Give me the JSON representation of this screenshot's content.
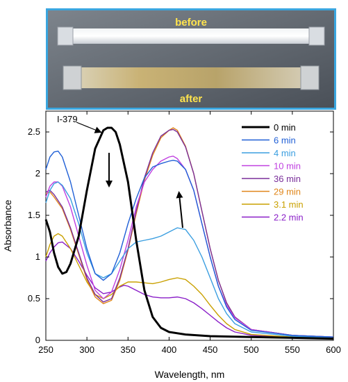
{
  "photo": {
    "before_label": "before",
    "after_label": "after",
    "label_color": "#ffe44d",
    "border_color": "#3aa6df"
  },
  "chart_data": {
    "type": "line",
    "title": "",
    "xlabel": "Wavelength, nm",
    "ylabel": "Absorbance",
    "xlim": [
      250,
      600
    ],
    "ylim": [
      0,
      2.75
    ],
    "xticks": [
      250,
      300,
      350,
      400,
      450,
      500,
      550,
      600
    ],
    "yticks": [
      0,
      0.5,
      1,
      1.5,
      2,
      2.5
    ],
    "xtick_labels": [
      "250",
      "300",
      "350",
      "400",
      "450",
      "500",
      "550",
      "600"
    ],
    "ytick_labels": [
      "0",
      "0.5",
      "1",
      "1.5",
      "2",
      "2.5"
    ],
    "grid": false,
    "legend_position": "top-right",
    "annotation": "I-379",
    "series": [
      {
        "name": "0 min",
        "color": "#000000",
        "points": [
          [
            250,
            1.45
          ],
          [
            255,
            1.3
          ],
          [
            260,
            1.05
          ],
          [
            265,
            0.88
          ],
          [
            270,
            0.8
          ],
          [
            275,
            0.82
          ],
          [
            280,
            0.92
          ],
          [
            290,
            1.25
          ],
          [
            300,
            1.8
          ],
          [
            310,
            2.3
          ],
          [
            320,
            2.52
          ],
          [
            325,
            2.55
          ],
          [
            330,
            2.55
          ],
          [
            335,
            2.5
          ],
          [
            340,
            2.35
          ],
          [
            350,
            1.9
          ],
          [
            360,
            1.2
          ],
          [
            370,
            0.6
          ],
          [
            380,
            0.28
          ],
          [
            390,
            0.15
          ],
          [
            400,
            0.1
          ],
          [
            420,
            0.07
          ],
          [
            450,
            0.05
          ],
          [
            500,
            0.04
          ],
          [
            550,
            0.03
          ],
          [
            600,
            0.02
          ]
        ]
      },
      {
        "name": "6 min",
        "color": "#1f5fd6",
        "points": [
          [
            250,
            2.05
          ],
          [
            255,
            2.2
          ],
          [
            260,
            2.26
          ],
          [
            265,
            2.27
          ],
          [
            270,
            2.2
          ],
          [
            280,
            1.9
          ],
          [
            290,
            1.5
          ],
          [
            300,
            1.1
          ],
          [
            310,
            0.8
          ],
          [
            320,
            0.72
          ],
          [
            330,
            0.8
          ],
          [
            340,
            1.05
          ],
          [
            350,
            1.4
          ],
          [
            360,
            1.7
          ],
          [
            370,
            1.95
          ],
          [
            380,
            2.08
          ],
          [
            390,
            2.12
          ],
          [
            400,
            2.15
          ],
          [
            405,
            2.16
          ],
          [
            410,
            2.15
          ],
          [
            420,
            2.05
          ],
          [
            430,
            1.8
          ],
          [
            440,
            1.4
          ],
          [
            450,
            1.0
          ],
          [
            460,
            0.65
          ],
          [
            470,
            0.4
          ],
          [
            480,
            0.25
          ],
          [
            500,
            0.12
          ],
          [
            550,
            0.06
          ],
          [
            600,
            0.04
          ]
        ]
      },
      {
        "name": "4 min",
        "color": "#3a9ee0",
        "points": [
          [
            250,
            1.65
          ],
          [
            255,
            1.8
          ],
          [
            260,
            1.88
          ],
          [
            265,
            1.9
          ],
          [
            270,
            1.86
          ],
          [
            280,
            1.7
          ],
          [
            290,
            1.4
          ],
          [
            300,
            1.05
          ],
          [
            310,
            0.8
          ],
          [
            320,
            0.75
          ],
          [
            330,
            0.8
          ],
          [
            340,
            0.95
          ],
          [
            350,
            1.1
          ],
          [
            360,
            1.18
          ],
          [
            370,
            1.2
          ],
          [
            380,
            1.22
          ],
          [
            390,
            1.25
          ],
          [
            400,
            1.3
          ],
          [
            410,
            1.35
          ],
          [
            420,
            1.33
          ],
          [
            430,
            1.2
          ],
          [
            440,
            1.0
          ],
          [
            450,
            0.75
          ],
          [
            460,
            0.5
          ],
          [
            470,
            0.32
          ],
          [
            480,
            0.2
          ],
          [
            500,
            0.1
          ],
          [
            550,
            0.05
          ],
          [
            600,
            0.03
          ]
        ]
      },
      {
        "name": "10 min",
        "color": "#c040e0",
        "points": [
          [
            250,
            1.72
          ],
          [
            255,
            1.85
          ],
          [
            260,
            1.9
          ],
          [
            265,
            1.9
          ],
          [
            270,
            1.85
          ],
          [
            280,
            1.6
          ],
          [
            290,
            1.25
          ],
          [
            300,
            0.9
          ],
          [
            310,
            0.6
          ],
          [
            320,
            0.5
          ],
          [
            330,
            0.58
          ],
          [
            340,
            0.85
          ],
          [
            350,
            1.2
          ],
          [
            360,
            1.6
          ],
          [
            370,
            1.9
          ],
          [
            380,
            2.05
          ],
          [
            390,
            2.15
          ],
          [
            400,
            2.2
          ],
          [
            405,
            2.21
          ],
          [
            410,
            2.18
          ],
          [
            420,
            2.05
          ],
          [
            430,
            1.8
          ],
          [
            440,
            1.4
          ],
          [
            450,
            1.0
          ],
          [
            460,
            0.65
          ],
          [
            470,
            0.42
          ],
          [
            480,
            0.27
          ],
          [
            500,
            0.13
          ],
          [
            550,
            0.06
          ],
          [
            600,
            0.04
          ]
        ]
      },
      {
        "name": "36 min",
        "color": "#7a2f9a",
        "points": [
          [
            250,
            1.78
          ],
          [
            255,
            1.8
          ],
          [
            260,
            1.75
          ],
          [
            270,
            1.6
          ],
          [
            280,
            1.35
          ],
          [
            290,
            1.05
          ],
          [
            300,
            0.75
          ],
          [
            310,
            0.55
          ],
          [
            320,
            0.46
          ],
          [
            330,
            0.5
          ],
          [
            340,
            0.75
          ],
          [
            350,
            1.1
          ],
          [
            360,
            1.55
          ],
          [
            370,
            1.95
          ],
          [
            380,
            2.25
          ],
          [
            390,
            2.45
          ],
          [
            400,
            2.52
          ],
          [
            405,
            2.53
          ],
          [
            410,
            2.5
          ],
          [
            420,
            2.32
          ],
          [
            430,
            2.0
          ],
          [
            440,
            1.55
          ],
          [
            450,
            1.1
          ],
          [
            460,
            0.72
          ],
          [
            470,
            0.45
          ],
          [
            480,
            0.28
          ],
          [
            500,
            0.13
          ],
          [
            550,
            0.06
          ],
          [
            600,
            0.04
          ]
        ]
      },
      {
        "name": "29 min",
        "color": "#e0861a",
        "points": [
          [
            250,
            1.76
          ],
          [
            255,
            1.78
          ],
          [
            260,
            1.72
          ],
          [
            270,
            1.58
          ],
          [
            280,
            1.33
          ],
          [
            290,
            1.03
          ],
          [
            300,
            0.73
          ],
          [
            310,
            0.52
          ],
          [
            320,
            0.44
          ],
          [
            330,
            0.48
          ],
          [
            340,
            0.72
          ],
          [
            350,
            1.08
          ],
          [
            360,
            1.52
          ],
          [
            370,
            1.92
          ],
          [
            380,
            2.22
          ],
          [
            390,
            2.43
          ],
          [
            400,
            2.52
          ],
          [
            405,
            2.55
          ],
          [
            410,
            2.52
          ],
          [
            420,
            2.33
          ],
          [
            430,
            2.0
          ],
          [
            440,
            1.55
          ],
          [
            450,
            1.1
          ],
          [
            460,
            0.72
          ],
          [
            470,
            0.45
          ],
          [
            480,
            0.28
          ],
          [
            500,
            0.13
          ],
          [
            550,
            0.06
          ],
          [
            600,
            0.04
          ]
        ]
      },
      {
        "name": "3.1 min",
        "color": "#c9a000",
        "points": [
          [
            250,
            1.0
          ],
          [
            255,
            1.15
          ],
          [
            260,
            1.25
          ],
          [
            265,
            1.28
          ],
          [
            270,
            1.25
          ],
          [
            280,
            1.1
          ],
          [
            290,
            0.9
          ],
          [
            300,
            0.7
          ],
          [
            310,
            0.55
          ],
          [
            320,
            0.5
          ],
          [
            330,
            0.55
          ],
          [
            340,
            0.65
          ],
          [
            350,
            0.7
          ],
          [
            360,
            0.7
          ],
          [
            370,
            0.69
          ],
          [
            380,
            0.68
          ],
          [
            390,
            0.7
          ],
          [
            400,
            0.73
          ],
          [
            410,
            0.75
          ],
          [
            420,
            0.73
          ],
          [
            430,
            0.65
          ],
          [
            440,
            0.55
          ],
          [
            450,
            0.42
          ],
          [
            460,
            0.3
          ],
          [
            470,
            0.2
          ],
          [
            480,
            0.13
          ],
          [
            500,
            0.07
          ],
          [
            550,
            0.04
          ],
          [
            600,
            0.03
          ]
        ]
      },
      {
        "name": "2.2 min",
        "color": "#8a1ec8",
        "points": [
          [
            250,
            0.95
          ],
          [
            255,
            1.05
          ],
          [
            260,
            1.12
          ],
          [
            265,
            1.17
          ],
          [
            270,
            1.18
          ],
          [
            280,
            1.1
          ],
          [
            290,
            0.95
          ],
          [
            300,
            0.78
          ],
          [
            310,
            0.63
          ],
          [
            320,
            0.56
          ],
          [
            330,
            0.58
          ],
          [
            340,
            0.64
          ],
          [
            345,
            0.66
          ],
          [
            350,
            0.65
          ],
          [
            360,
            0.6
          ],
          [
            370,
            0.55
          ],
          [
            380,
            0.52
          ],
          [
            390,
            0.51
          ],
          [
            400,
            0.51
          ],
          [
            410,
            0.52
          ],
          [
            420,
            0.5
          ],
          [
            430,
            0.45
          ],
          [
            440,
            0.38
          ],
          [
            450,
            0.3
          ],
          [
            460,
            0.22
          ],
          [
            470,
            0.15
          ],
          [
            480,
            0.1
          ],
          [
            500,
            0.06
          ],
          [
            550,
            0.03
          ],
          [
            600,
            0.02
          ]
        ]
      }
    ]
  }
}
